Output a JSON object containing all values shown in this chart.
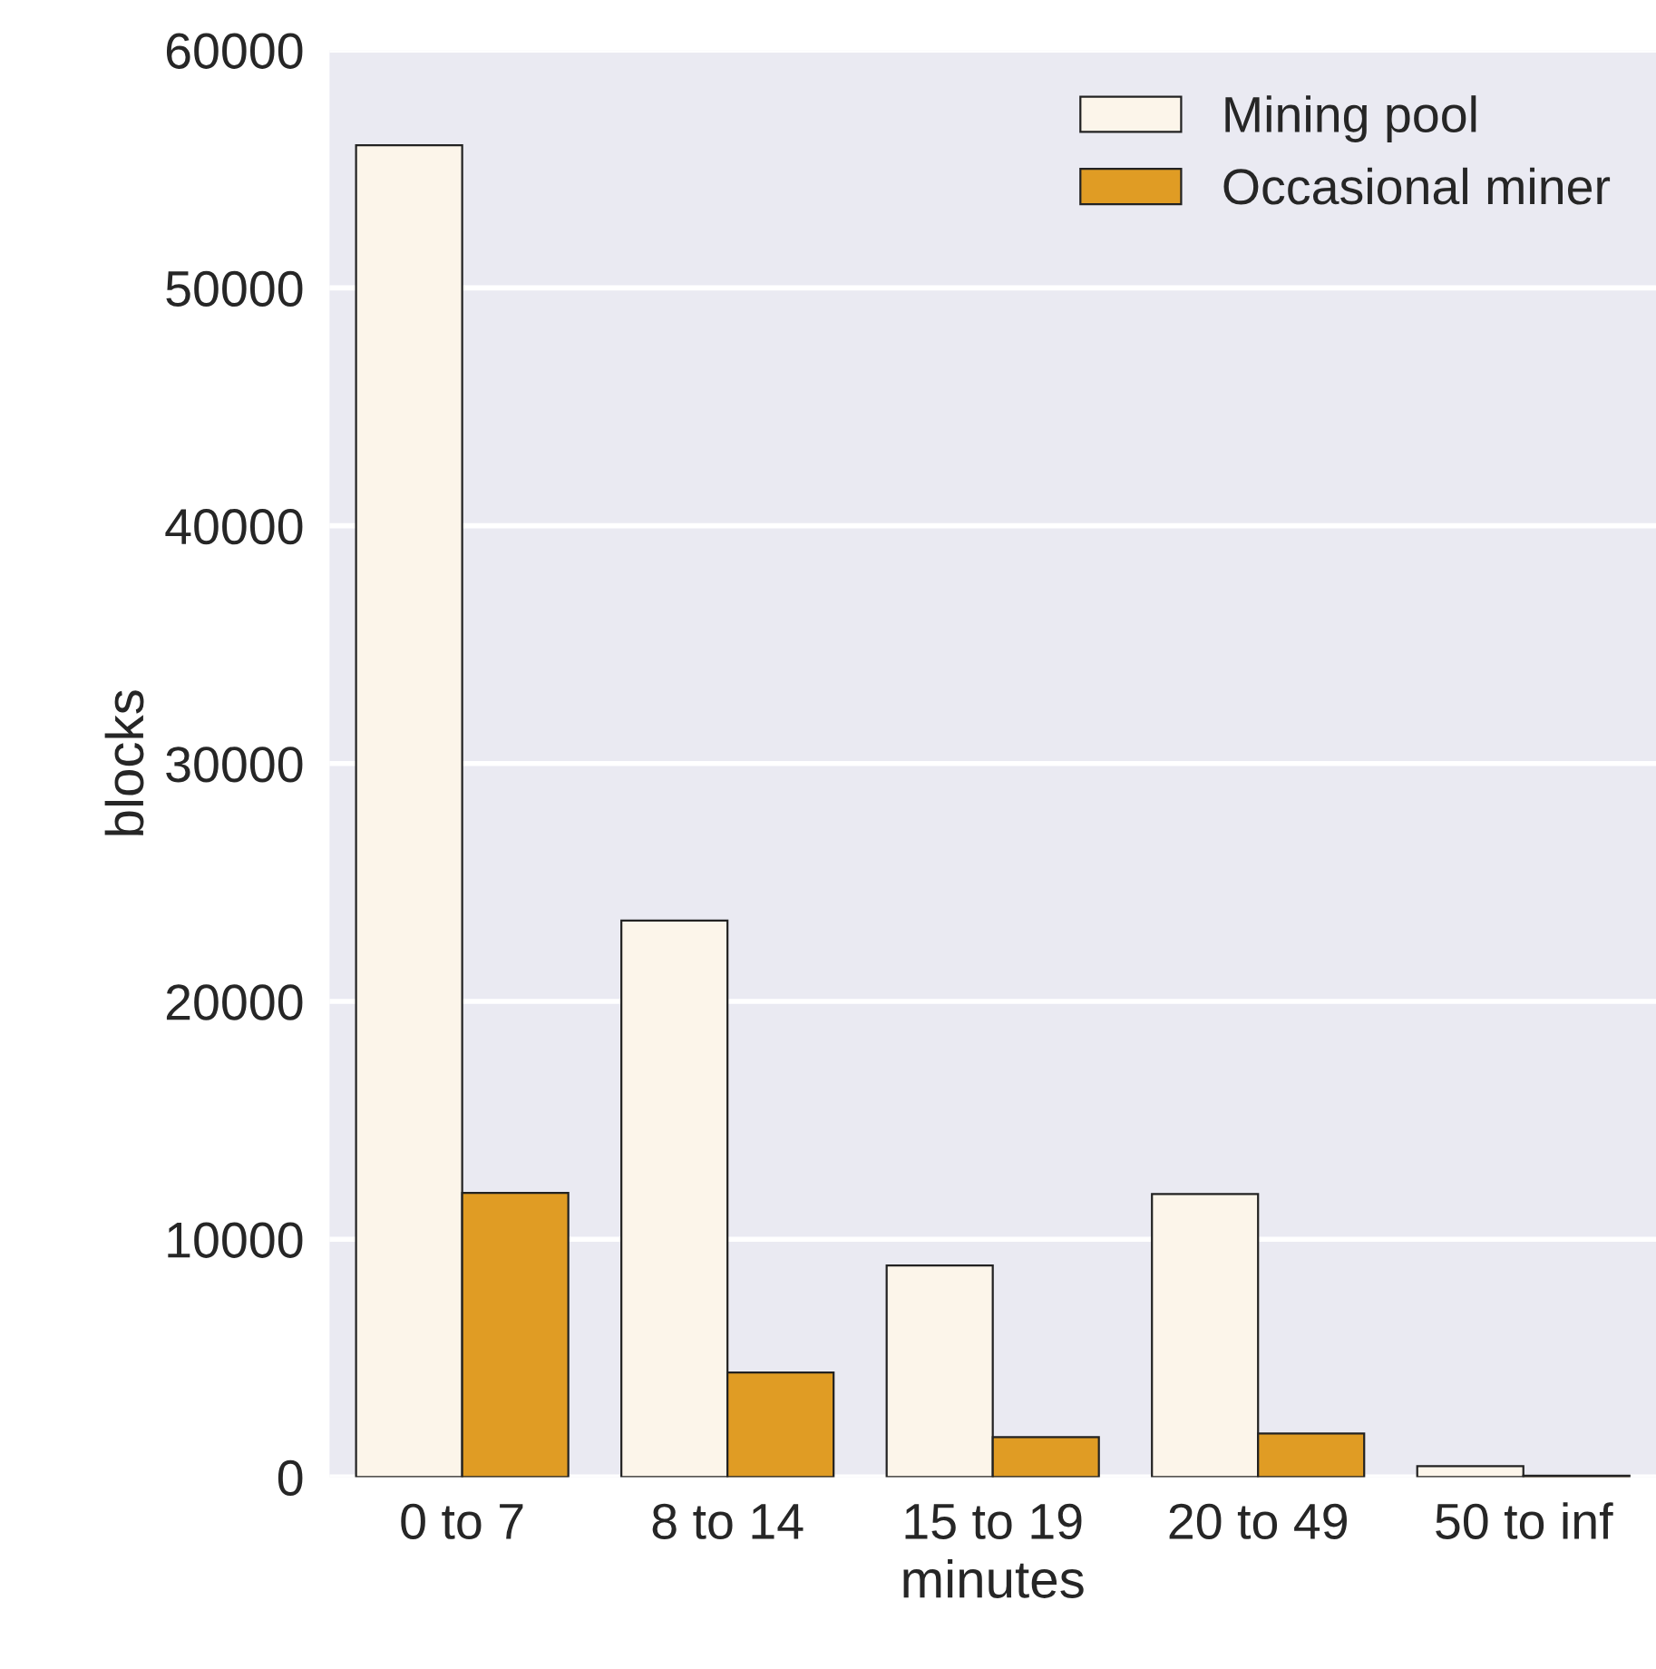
{
  "chart_data": {
    "type": "bar",
    "xlabel": "minutes",
    "ylabel": "blocks",
    "categories": [
      "0 to 7",
      "8 to 14",
      "15 to 19",
      "20 to 49",
      "50 to inf"
    ],
    "series": [
      {
        "name": "Mining pool",
        "color": "#fcf5ea",
        "values": [
          56000,
          23400,
          8900,
          11900,
          460
        ]
      },
      {
        "name": "Occasional miner",
        "color": "#e09c24",
        "values": [
          11950,
          4400,
          1680,
          1830,
          60
        ]
      }
    ],
    "ylim": [
      0,
      60000
    ],
    "yticks": [
      0,
      10000,
      20000,
      30000,
      40000,
      50000,
      60000
    ],
    "grid": "y",
    "legend": "top right"
  }
}
